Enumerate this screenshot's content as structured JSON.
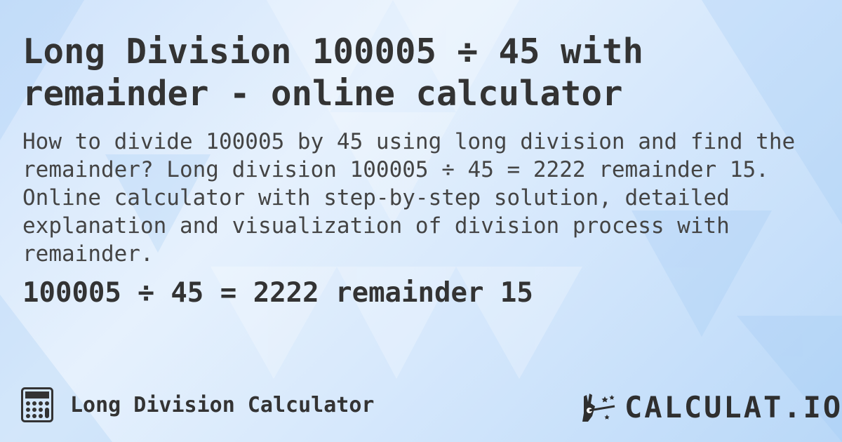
{
  "title": "Long Division 100005 ÷ 45 with remainder - online calculator",
  "description": "How to divide 100005 by 45 using long division and find the remainder? Long division 100005 ÷ 45 = 2222 remainder 15. Online calculator with step-by-step solution, detailed explanation and visualization of division process with remainder.",
  "result": "100005 ÷ 45 = 2222 remainder 15",
  "footer": {
    "icon": "calculator-icon",
    "label": "Long Division Calculator"
  },
  "logo": {
    "icon": "magic-hand-wand-icon",
    "text": "CALCULAT.IO"
  },
  "colors": {
    "text": "#333333",
    "background": "#d6e8fc"
  }
}
